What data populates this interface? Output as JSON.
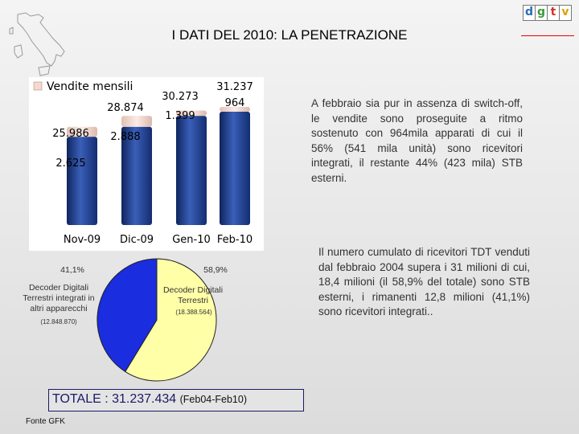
{
  "title": "I DATI DEL 2010: LA PENETRAZIONE",
  "logo": {
    "letters": [
      "d",
      "g",
      "t",
      "v"
    ],
    "colors": [
      "#2a6db3",
      "#3a9a3a",
      "#d6302a",
      "#e0a000"
    ]
  },
  "chart_data": [
    {
      "type": "bar",
      "legend": "Vendite mensili",
      "categories": [
        "Nov-09",
        "Dic-09",
        "Gen-10",
        "Feb-10"
      ],
      "series": [
        {
          "name": "Vendite mensili",
          "values": [
            2.625,
            2.888,
            1.399,
            0.964
          ]
        },
        {
          "values": [
            25.986,
            28.874,
            30.273,
            31.237
          ]
        }
      ],
      "value_labels": [
        "2.625",
        "2.888",
        "1.399",
        "964"
      ],
      "total_labels": [
        "25.986",
        "28.874",
        "30.273",
        "31.237"
      ],
      "ylim": [
        0,
        34
      ],
      "colors": {
        "base": "#1f3f8f",
        "top": "#f4d9cf"
      }
    },
    {
      "type": "pie",
      "slices": [
        {
          "label": "Decoder Digitali Terrestri integrati in altri apparecchi",
          "value": 41.1,
          "percent_label": "41,1%",
          "count_label": "(12.848.870)",
          "color": "#1a2ddf"
        },
        {
          "label": "Decoder Digitali Terrestri",
          "value": 58.9,
          "percent_label": "58,9%",
          "count_label": "(18.388.564)",
          "color": "#ffffa8"
        }
      ]
    }
  ],
  "paragraphs": {
    "p1": "A febbraio sia pur in assenza di switch-off, le vendite sono proseguite a ritmo sostenuto con 964mila apparati di cui il 56% (541 mila unità) sono ricevitori integrati, il restante 44% (423 mila) STB esterni.",
    "p2": "Il numero cumulato di ricevitori TDT venduti dal febbraio 2004 supera i 31 milioni di cui, 18,4 milioni (il 58,9% del totale) sono STB esterni, i rimanenti 12,8 milioni (41,1%) sono ricevitori integrati.."
  },
  "total": {
    "main": "TOTALE : 31.237.434",
    "sub": "(Feb04-Feb10)"
  },
  "source": "Fonte GFK"
}
